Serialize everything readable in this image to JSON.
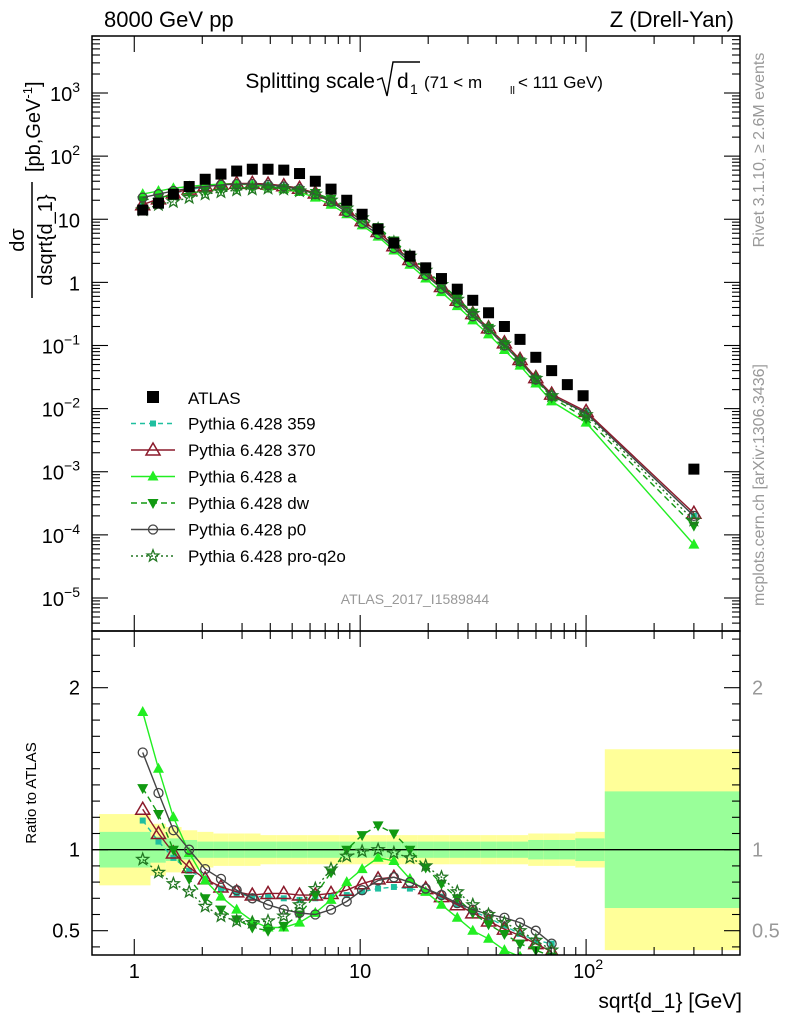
{
  "header": {
    "left": "8000 GeV pp",
    "right": "Z (Drell-Yan)"
  },
  "side": {
    "rivet": "Rivet 3.1.10, ≥ 2.6M events",
    "mcplots": "mcplots.cern.ch [arXiv:1306.3436]"
  },
  "colors": {
    "atlas": "#000000",
    "py359": "#1fbf9f",
    "py370": "#8b1a2b",
    "pya": "#22ee22",
    "pydw": "#119911",
    "pyp0": "#444444",
    "pyq2o": "#227722",
    "band_yellow": "#ffff99",
    "band_green": "#99ff99"
  },
  "chart_data": {
    "type": "line",
    "title": "Splitting scale",
    "title_math": {
      "sqrt_arg": "d",
      "sqrt_sub": "1",
      "range_pre": "(71 < m",
      "range_sub": "ll",
      "range_post": " < 111 GeV)"
    },
    "xlabel": "sqrt{d_1} [GeV]",
    "ylabel_top": {
      "num": "dσ",
      "den": "dsqrt{d_1}",
      "unit": "[pb,GeV",
      "unit_sup": "-1",
      "unit_close": "]"
    },
    "ylabel_ratio": "Ratio to ATLAS",
    "analysis_id": "ATLAS_2017_I1589844",
    "xscale": "log",
    "yscale_top": "log",
    "xlim": [
      0.65,
      480
    ],
    "ylim_top": [
      3e-06,
      8000
    ],
    "ylim_ratio": [
      0.35,
      2.35
    ],
    "x_ticks": [
      {
        "v": 1,
        "base": "1",
        "exp": ""
      },
      {
        "v": 10,
        "base": "10",
        "exp": ""
      },
      {
        "v": 100,
        "base": "10",
        "exp": "2"
      }
    ],
    "y_ticks_top": [
      {
        "v": 1e-05,
        "base": "10",
        "exp": "−5"
      },
      {
        "v": 0.0001,
        "base": "10",
        "exp": "−4"
      },
      {
        "v": 0.001,
        "base": "10",
        "exp": "−3"
      },
      {
        "v": 0.01,
        "base": "10",
        "exp": "−2"
      },
      {
        "v": 0.1,
        "base": "10",
        "exp": "−1"
      },
      {
        "v": 1,
        "base": "1",
        "exp": ""
      },
      {
        "v": 10,
        "base": "10",
        "exp": ""
      },
      {
        "v": 100,
        "base": "10",
        "exp": "2"
      },
      {
        "v": 1000,
        "base": "10",
        "exp": "3"
      }
    ],
    "y_ticks_ratio": [
      {
        "v": 0.5,
        "label": "0.5"
      },
      {
        "v": 1,
        "label": "1"
      },
      {
        "v": 2,
        "label": "2"
      }
    ],
    "legend_position": "left-middle",
    "data": {
      "name": "ATLAS",
      "x": [
        1.09,
        1.28,
        1.49,
        1.75,
        2.06,
        2.42,
        2.84,
        3.33,
        3.91,
        4.59,
        5.39,
        6.33,
        7.43,
        8.72,
        10.2,
        12.0,
        14.1,
        16.6,
        19.5,
        22.9,
        26.9,
        31.5,
        37.0,
        43.5,
        51.0,
        59.9,
        70.4,
        82.6,
        97.0,
        300
      ],
      "y": [
        14,
        18,
        25,
        33,
        43,
        52,
        58,
        62,
        62,
        60,
        53,
        40,
        30,
        20,
        12,
        7.0,
        4.2,
        2.6,
        1.7,
        1.15,
        0.78,
        0.52,
        0.33,
        0.2,
        0.125,
        0.065,
        0.04,
        0.024,
        0.016,
        0.0011
      ]
    },
    "ratio_x": [
      1.09,
      1.28,
      1.49,
      1.75,
      2.06,
      2.42,
      2.84,
      3.33,
      3.91,
      4.59,
      5.39,
      6.33,
      7.43,
      8.72,
      10.2,
      12.0,
      14.1,
      16.6,
      19.5,
      22.9,
      26.9,
      31.5,
      37.0,
      43.5,
      51.0,
      59.9,
      70.4
    ],
    "series": [
      {
        "name": "Pythia 6.428 359",
        "x": [
          1.09,
          1.28,
          1.49,
          1.75,
          2.06,
          2.42,
          2.84,
          3.33,
          3.91,
          4.59,
          5.39,
          6.33,
          7.43,
          8.72,
          10.2,
          12.0,
          14.1,
          16.6,
          19.5,
          22.9,
          26.9,
          31.5,
          37.0,
          43.5,
          51.0,
          59.9,
          70.4,
          100,
          300
        ],
        "y": [
          17,
          21,
          26,
          29,
          33,
          35,
          36,
          36,
          35,
          33,
          30,
          25,
          19,
          13,
          8.8,
          6.0,
          3.6,
          2.2,
          1.35,
          0.83,
          0.5,
          0.31,
          0.19,
          0.108,
          0.058,
          0.03,
          0.016,
          0.0085,
          0.0002
        ],
        "ratio": [
          1.18,
          1.05,
          0.95,
          0.87,
          0.82,
          0.76,
          0.73,
          0.71,
          0.71,
          0.7,
          0.69,
          0.7,
          0.71,
          0.72,
          0.74,
          0.76,
          0.77,
          0.76,
          0.74,
          0.71,
          0.66,
          0.62,
          0.58,
          0.53,
          0.48,
          0.44,
          0.42
        ]
      },
      {
        "name": "Pythia 6.428 370",
        "x": [
          1.09,
          1.28,
          1.49,
          1.75,
          2.06,
          2.42,
          2.84,
          3.33,
          3.91,
          4.59,
          5.39,
          6.33,
          7.43,
          8.72,
          10.2,
          12.0,
          14.1,
          16.6,
          19.5,
          22.9,
          26.9,
          31.5,
          37.0,
          43.5,
          51.0,
          59.9,
          70.4,
          100,
          300
        ],
        "y": [
          17,
          21,
          26,
          30,
          34,
          36,
          37,
          37,
          36,
          34,
          31,
          26,
          20,
          14,
          9.5,
          6.4,
          3.8,
          2.3,
          1.4,
          0.86,
          0.52,
          0.32,
          0.19,
          0.11,
          0.06,
          0.031,
          0.017,
          0.009,
          0.00022
        ],
        "ratio": [
          1.25,
          1.1,
          0.98,
          0.89,
          0.82,
          0.77,
          0.74,
          0.72,
          0.73,
          0.73,
          0.72,
          0.72,
          0.73,
          0.75,
          0.79,
          0.82,
          0.83,
          0.8,
          0.76,
          0.71,
          0.66,
          0.61,
          0.56,
          0.51,
          0.47,
          0.42,
          0.37
        ]
      },
      {
        "name": "Pythia 6.428 a",
        "x": [
          1.09,
          1.28,
          1.49,
          1.75,
          2.06,
          2.42,
          2.84,
          3.33,
          3.91,
          4.59,
          5.39,
          6.33,
          7.43,
          8.72,
          10.2,
          12.0,
          14.1,
          16.6,
          19.5,
          22.9,
          26.9,
          31.5,
          37.0,
          43.5,
          51.0,
          59.9,
          70.4,
          100,
          300
        ],
        "y": [
          25,
          28,
          31,
          33,
          35,
          36,
          36,
          35,
          33,
          30,
          27,
          22,
          17,
          12,
          8.0,
          5.3,
          3.2,
          1.9,
          1.15,
          0.7,
          0.42,
          0.25,
          0.15,
          0.085,
          0.048,
          0.025,
          0.013,
          0.006,
          7e-05
        ],
        "ratio": [
          1.85,
          1.5,
          1.2,
          0.98,
          0.81,
          0.71,
          0.63,
          0.56,
          0.52,
          0.52,
          0.55,
          0.61,
          0.69,
          0.8,
          0.88,
          0.95,
          0.93,
          0.82,
          0.74,
          0.66,
          0.58,
          0.5,
          0.45,
          0.38,
          0.34,
          0.3,
          0.28
        ]
      },
      {
        "name": "Pythia 6.428 dw",
        "x": [
          1.09,
          1.28,
          1.49,
          1.75,
          2.06,
          2.42,
          2.84,
          3.33,
          3.91,
          4.59,
          5.39,
          6.33,
          7.43,
          8.72,
          10.2,
          12.0,
          14.1,
          16.6,
          19.5,
          22.9,
          26.9,
          31.5,
          37.0,
          43.5,
          51.0,
          59.9,
          70.4,
          100,
          300
        ],
        "y": [
          20,
          22,
          24,
          26,
          28,
          30,
          31,
          32,
          32,
          31,
          29,
          26,
          21,
          16,
          11.5,
          7.5,
          4.6,
          2.7,
          1.6,
          0.95,
          0.56,
          0.33,
          0.19,
          0.105,
          0.056,
          0.029,
          0.015,
          0.007,
          0.00014
        ],
        "ratio": [
          1.38,
          1.22,
          1.0,
          0.82,
          0.7,
          0.63,
          0.57,
          0.52,
          0.5,
          0.53,
          0.6,
          0.72,
          0.86,
          1.0,
          1.09,
          1.15,
          1.1,
          1.0,
          0.89,
          0.79,
          0.7,
          0.61,
          0.54,
          0.48,
          0.42,
          0.38,
          0.34
        ]
      },
      {
        "name": "Pythia 6.428 p0",
        "x": [
          1.09,
          1.28,
          1.49,
          1.75,
          2.06,
          2.42,
          2.84,
          3.33,
          3.91,
          4.59,
          5.39,
          6.33,
          7.43,
          8.72,
          10.2,
          12.0,
          14.1,
          16.6,
          19.5,
          22.9,
          26.9,
          31.5,
          37.0,
          43.5,
          51.0,
          59.9,
          70.4,
          100,
          300
        ],
        "y": [
          22,
          25,
          28,
          31,
          33,
          35,
          36,
          36,
          35,
          33,
          30,
          25,
          19,
          13,
          8.6,
          5.8,
          3.5,
          2.1,
          1.3,
          0.8,
          0.48,
          0.29,
          0.18,
          0.1,
          0.056,
          0.029,
          0.016,
          0.0085,
          0.0002
        ],
        "ratio": [
          1.6,
          1.35,
          1.12,
          1.0,
          0.88,
          0.82,
          0.75,
          0.7,
          0.66,
          0.63,
          0.61,
          0.6,
          0.63,
          0.68,
          0.75,
          0.81,
          0.83,
          0.8,
          0.76,
          0.72,
          0.67,
          0.63,
          0.6,
          0.58,
          0.55,
          0.5,
          0.42
        ]
      },
      {
        "name": "Pythia 6.428 pro-q2o",
        "x": [
          1.09,
          1.28,
          1.49,
          1.75,
          2.06,
          2.42,
          2.84,
          3.33,
          3.91,
          4.59,
          5.39,
          6.33,
          7.43,
          8.72,
          10.2,
          12.0,
          14.1,
          16.6,
          19.5,
          22.9,
          26.9,
          31.5,
          37.0,
          43.5,
          51.0,
          59.9,
          70.4,
          100,
          300
        ],
        "y": [
          14,
          17,
          19,
          22,
          25,
          27,
          29,
          30,
          31,
          30,
          28,
          25,
          20,
          15,
          10.5,
          7.0,
          4.3,
          2.6,
          1.55,
          0.92,
          0.54,
          0.32,
          0.19,
          0.105,
          0.057,
          0.03,
          0.016,
          0.008,
          0.00017
        ],
        "ratio": [
          0.94,
          0.86,
          0.79,
          0.74,
          0.65,
          0.59,
          0.56,
          0.55,
          0.56,
          0.59,
          0.66,
          0.76,
          0.88,
          0.96,
          0.99,
          1.0,
          0.98,
          0.95,
          0.9,
          0.83,
          0.74,
          0.66,
          0.6,
          0.55,
          0.5,
          0.44,
          0.38
        ]
      }
    ],
    "uncertainty_bands": {
      "x_edges": [
        0.7,
        1.18,
        1.38,
        1.62,
        1.9,
        2.24,
        2.62,
        3.08,
        3.62,
        4.25,
        4.99,
        5.86,
        6.88,
        8.07,
        9.48,
        11.1,
        13.1,
        15.3,
        18.0,
        21.1,
        24.8,
        29.1,
        34.2,
        40.2,
        47.2,
        55.4,
        65.0,
        76.3,
        89.6,
        121,
        480
      ],
      "total_half_width": [
        0.22,
        0.16,
        0.14,
        0.12,
        0.11,
        0.1,
        0.1,
        0.1,
        0.09,
        0.09,
        0.09,
        0.09,
        0.09,
        0.09,
        0.09,
        0.09,
        0.09,
        0.09,
        0.09,
        0.09,
        0.09,
        0.09,
        0.09,
        0.09,
        0.09,
        0.1,
        0.1,
        0.1,
        0.11,
        0.62
      ],
      "stat_half_width": [
        0.11,
        0.08,
        0.07,
        0.06,
        0.05,
        0.05,
        0.05,
        0.05,
        0.05,
        0.05,
        0.05,
        0.05,
        0.05,
        0.05,
        0.05,
        0.05,
        0.05,
        0.05,
        0.05,
        0.05,
        0.05,
        0.05,
        0.05,
        0.05,
        0.05,
        0.06,
        0.06,
        0.06,
        0.07,
        0.36
      ]
    }
  }
}
